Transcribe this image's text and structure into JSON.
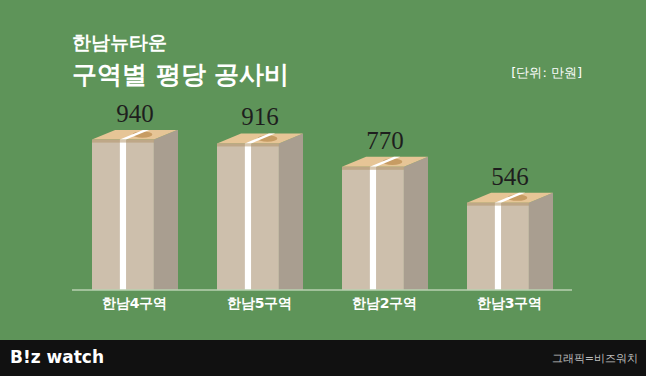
{
  "chart_data": {
    "type": "bar",
    "subtitle": "한남뉴타운",
    "title": "구역별 평당 공사비",
    "annotations": [
      "[단위: 만원]",
      "B!z watch",
      "그래픽=비즈워치"
    ],
    "categories": [
      "한남4구역",
      "한남5구역",
      "한남2구역",
      "한남3구역"
    ],
    "values": [
      940,
      916,
      770,
      546
    ],
    "color": "#cdbfac",
    "ylim": [
      0,
      1000
    ],
    "data_labels": true,
    "tick_labels": "x",
    "grid": false
  }
}
